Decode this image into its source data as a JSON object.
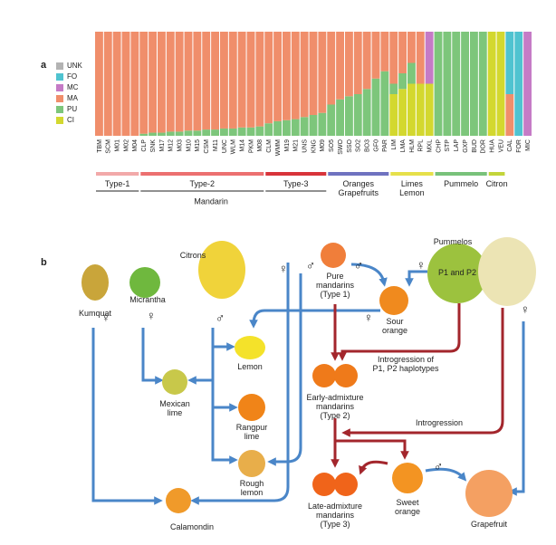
{
  "panel_labels": [
    "a",
    "b"
  ],
  "chart_data": {
    "type": "stacked_bar",
    "categories": [
      "TBM",
      "SCM",
      "M01",
      "M02",
      "M04",
      "CLP",
      "SNK",
      "M17",
      "M12",
      "M03",
      "M10",
      "M15",
      "CSM",
      "M11",
      "UNC",
      "WLM",
      "M14",
      "PKM",
      "M08",
      "CLM",
      "WMM",
      "M19",
      "M21",
      "UNS",
      "KNG",
      "M09",
      "SO5",
      "SWO",
      "SSO",
      "SO2",
      "BO3",
      "GF0",
      "PAR",
      "LIM",
      "LMA",
      "HLM",
      "RPL",
      "MXL",
      "CHP",
      "STP",
      "LAP",
      "GXP",
      "BUD",
      "DOR",
      "HUA",
      "VEU",
      "CAL",
      "FOR",
      "MIC"
    ],
    "series": [
      {
        "name": "CI",
        "color": "#d3d82f",
        "values": [
          0,
          0,
          0,
          0,
          0,
          0,
          0,
          0,
          0,
          0,
          0,
          0,
          0,
          0,
          0,
          0,
          0,
          0,
          0,
          0,
          0,
          0,
          0,
          0,
          0,
          0,
          0,
          0,
          0,
          0,
          0,
          0,
          0,
          40,
          45,
          50,
          50,
          50,
          0,
          0,
          0,
          0,
          0,
          0,
          100,
          100,
          0,
          0,
          0
        ]
      },
      {
        "name": "PU",
        "color": "#7dc67b",
        "values": [
          0,
          0,
          0,
          0,
          0,
          2,
          3,
          3,
          4,
          4,
          5,
          5,
          6,
          6,
          7,
          7,
          8,
          8,
          9,
          12,
          14,
          15,
          16,
          18,
          20,
          22,
          30,
          35,
          38,
          40,
          45,
          55,
          62,
          10,
          15,
          20,
          0,
          0,
          100,
          100,
          100,
          100,
          100,
          100,
          0,
          0,
          0,
          0,
          0
        ]
      },
      {
        "name": "MA",
        "color": "#f08e6b",
        "values": [
          100,
          100,
          100,
          100,
          100,
          98,
          97,
          97,
          96,
          96,
          95,
          95,
          94,
          94,
          93,
          93,
          92,
          92,
          91,
          88,
          86,
          85,
          84,
          82,
          80,
          78,
          70,
          65,
          62,
          60,
          55,
          45,
          38,
          50,
          40,
          30,
          50,
          0,
          0,
          0,
          0,
          0,
          0,
          0,
          0,
          0,
          40,
          0,
          0
        ]
      },
      {
        "name": "MC",
        "color": "#c57bc6",
        "values": [
          0,
          0,
          0,
          0,
          0,
          0,
          0,
          0,
          0,
          0,
          0,
          0,
          0,
          0,
          0,
          0,
          0,
          0,
          0,
          0,
          0,
          0,
          0,
          0,
          0,
          0,
          0,
          0,
          0,
          0,
          0,
          0,
          0,
          0,
          0,
          0,
          0,
          50,
          0,
          0,
          0,
          0,
          0,
          0,
          0,
          0,
          0,
          0,
          100
        ]
      },
      {
        "name": "FO",
        "color": "#4fc3d0",
        "values": [
          0,
          0,
          0,
          0,
          0,
          0,
          0,
          0,
          0,
          0,
          0,
          0,
          0,
          0,
          0,
          0,
          0,
          0,
          0,
          0,
          0,
          0,
          0,
          0,
          0,
          0,
          0,
          0,
          0,
          0,
          0,
          0,
          0,
          0,
          0,
          0,
          0,
          0,
          0,
          0,
          0,
          0,
          0,
          0,
          0,
          0,
          60,
          100,
          0
        ]
      },
      {
        "name": "UNK",
        "color": "#b3b3b3",
        "values": [
          0,
          0,
          0,
          0,
          0,
          0,
          0,
          0,
          0,
          0,
          0,
          0,
          0,
          0,
          0,
          0,
          0,
          0,
          0,
          0,
          0,
          0,
          0,
          0,
          0,
          0,
          0,
          0,
          0,
          0,
          0,
          0,
          0,
          0,
          0,
          0,
          0,
          0,
          0,
          0,
          0,
          0,
          0,
          0,
          0,
          0,
          0,
          0,
          0
        ]
      }
    ],
    "ylim": [
      0,
      100
    ],
    "groups": [
      {
        "label": [
          "Type-1"
        ],
        "color": "#f2a9a9",
        "start": 0,
        "end": 4
      },
      {
        "label": [
          "Type-2"
        ],
        "color": "#ec7070",
        "start": 5,
        "end": 18
      },
      {
        "label": [
          "Type-3"
        ],
        "color": "#d8333a",
        "start": 19,
        "end": 25
      },
      {
        "label": [
          "Oranges",
          "Grapefruits"
        ],
        "color": "#6f72c0",
        "start": 26,
        "end": 32
      },
      {
        "label": [
          "Limes",
          "Lemon"
        ],
        "color": "#e6e04a",
        "start": 33,
        "end": 37
      },
      {
        "label": [
          "Pummelo"
        ],
        "color": "#78c27a",
        "start": 38,
        "end": 43
      },
      {
        "label": [
          "Citron"
        ],
        "color": "#c3d53a",
        "start": 44,
        "end": 45
      }
    ],
    "supergroup": {
      "label": "Mandarin",
      "start": 0,
      "end": 2
    }
  },
  "diagram": {
    "nodes": [
      {
        "label": [
          "Kumquat"
        ]
      },
      {
        "label": [
          "Micrantha"
        ]
      },
      {
        "label": [
          "Citrons"
        ]
      },
      {
        "label": [
          "Pure",
          "mandarins",
          "(Type 1)"
        ]
      },
      {
        "label": [
          "Pummelos"
        ]
      },
      {
        "label": [
          "P1 and P2"
        ]
      },
      {
        "label": [
          "Sour",
          "orange"
        ]
      },
      {
        "label": [
          "Lemon"
        ]
      },
      {
        "label": [
          "Mexican",
          "lime"
        ]
      },
      {
        "label": [
          "Rangpur",
          "lime"
        ]
      },
      {
        "label": [
          "Rough",
          "lemon"
        ]
      },
      {
        "label": [
          "Early-admixture",
          "mandarins",
          "(Type 2)"
        ]
      },
      {
        "label": [
          "Late-admixture",
          "mandarins",
          "(Type 3)"
        ]
      },
      {
        "label": [
          "Sweet",
          "orange"
        ]
      },
      {
        "label": [
          "Grapefruit"
        ]
      },
      {
        "label": [
          "Calamondin"
        ]
      }
    ],
    "annotations": [
      {
        "label": [
          "Introgression of",
          "P1, P2 haplotypes"
        ]
      },
      {
        "label": [
          "Introgression"
        ]
      }
    ],
    "sex_marks": [
      "♀",
      "♀",
      "♂",
      "♀",
      "♂",
      "♂",
      "♀",
      "♀",
      "♀",
      "♂"
    ]
  }
}
